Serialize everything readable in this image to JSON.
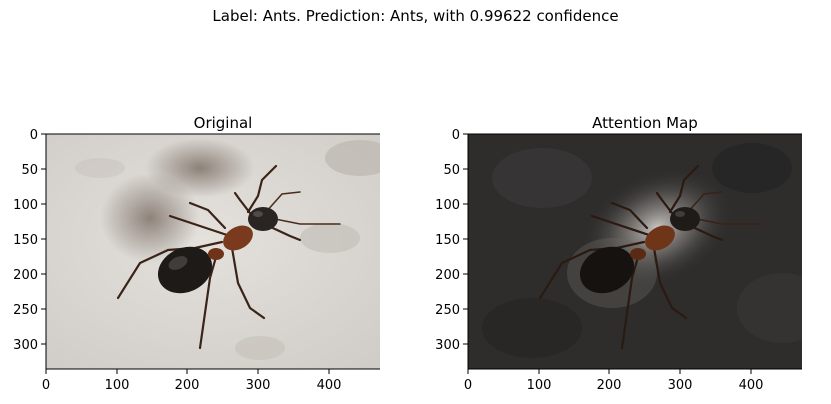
{
  "figure": {
    "suptitle": "Label: Ants. Prediction: Ants, with 0.99622 confidence",
    "label": "Ants",
    "prediction": "Ants",
    "confidence": 0.99622
  },
  "chart_data": [
    {
      "type": "image",
      "title": "Original",
      "xlim": [
        0,
        500
      ],
      "ylim": [
        334,
        0
      ],
      "xticks": [
        0,
        100,
        200,
        300,
        400
      ],
      "yticks": [
        0,
        50,
        100,
        150,
        200,
        250,
        300
      ],
      "content": "photo of a black-and-red ant on a light textured stone surface",
      "colors": {
        "background": "#dcd9d5",
        "ant_head": "#2a2523",
        "ant_thorax": "#7a3a1e",
        "ant_abdomen": "#1e1a18"
      }
    },
    {
      "type": "image",
      "title": "Attention Map",
      "xlim": [
        0,
        500
      ],
      "ylim": [
        334,
        0
      ],
      "xticks": [
        0,
        100,
        200,
        300,
        400
      ],
      "yticks": [
        0,
        50,
        100,
        150,
        200,
        250,
        300
      ],
      "content": "same photo darkened, brightest around the ant",
      "colors": {
        "background": "#2e2d2c",
        "highlight": "#d9d6d2"
      }
    }
  ]
}
